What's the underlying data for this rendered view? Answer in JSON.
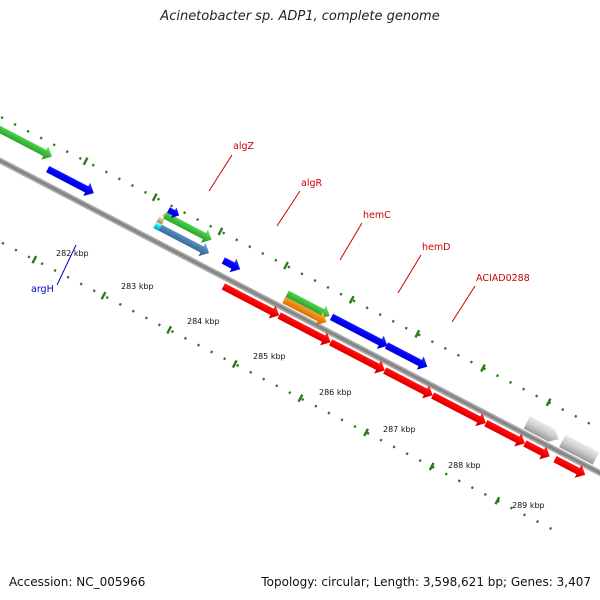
{
  "title": "Acinetobacter sp. ADP1, complete genome",
  "footer": {
    "accession": "Accession: NC_005966",
    "summary": "Topology: circular; Length: 3,598,621 bp; Genes: 3,407"
  },
  "colors": {
    "backbone": "#8a8a8a",
    "tick": "#2a7a1a",
    "gene_label_red": "#cc0000",
    "gene_label_blue": "#0000cc"
  },
  "ticks": [
    {
      "label": "282 kbp"
    },
    {
      "label": "283 kbp"
    },
    {
      "label": "284 kbp"
    },
    {
      "label": "285 kbp"
    },
    {
      "label": "286 kbp"
    },
    {
      "label": "287 kbp"
    },
    {
      "label": "288 kbp"
    },
    {
      "label": "289 kbp"
    }
  ],
  "gene_labels": [
    {
      "text": "argH",
      "color": "blue"
    },
    {
      "text": "algZ",
      "color": "red"
    },
    {
      "text": "algR",
      "color": "red"
    },
    {
      "text": "hemC",
      "color": "red"
    },
    {
      "text": "hemD",
      "color": "red"
    },
    {
      "text": "ACIAD0288",
      "color": "red"
    }
  ]
}
